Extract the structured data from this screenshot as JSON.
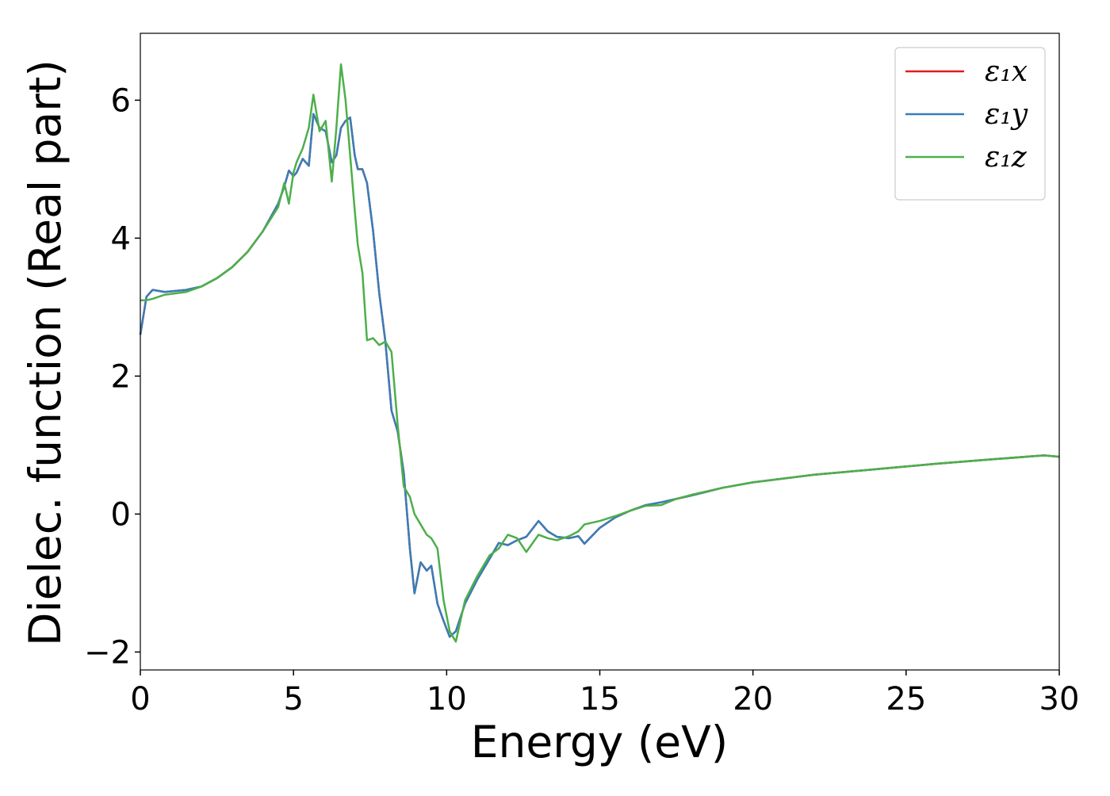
{
  "chart_data": {
    "type": "line",
    "xlabel": "Energy (eV)",
    "ylabel": "Dielec. function (Real part)",
    "x": [
      0,
      0.2,
      0.4,
      0.8,
      1.5,
      2,
      2.5,
      3,
      3.5,
      4,
      4.5,
      4.7,
      4.85,
      5.0,
      5.1,
      5.3,
      5.5,
      5.65,
      5.85,
      6.05,
      6.25,
      6.4,
      6.55,
      6.7,
      6.85,
      7.0,
      7.1,
      7.25,
      7.4,
      7.6,
      7.8,
      8.0,
      8.2,
      8.4,
      8.6,
      8.8,
      8.95,
      9.15,
      9.35,
      9.5,
      9.7,
      9.9,
      10.1,
      10.3,
      10.6,
      11.0,
      11.4,
      11.7,
      12.0,
      12.3,
      12.6,
      13.0,
      13.3,
      13.6,
      14.0,
      14.3,
      14.5,
      15,
      15.5,
      16,
      16.5,
      17,
      17.5,
      18,
      19,
      20,
      22,
      24,
      26,
      28,
      29.5,
      30
    ],
    "series": [
      {
        "name": "ε₁x",
        "color": "#e41a1c",
        "values": [
          2.6,
          3.15,
          3.25,
          3.22,
          3.25,
          3.3,
          3.42,
          3.58,
          3.8,
          4.1,
          4.5,
          4.75,
          4.98,
          4.9,
          4.95,
          5.15,
          5.05,
          5.8,
          5.6,
          5.55,
          5.1,
          5.2,
          5.6,
          5.7,
          5.75,
          5.2,
          5.0,
          5.0,
          4.8,
          4.1,
          3.2,
          2.5,
          1.5,
          1.2,
          0.6,
          -0.5,
          -1.15,
          -0.7,
          -0.82,
          -0.75,
          -1.3,
          -1.55,
          -1.78,
          -1.7,
          -1.3,
          -0.95,
          -0.65,
          -0.42,
          -0.45,
          -0.38,
          -0.33,
          -0.1,
          -0.25,
          -0.33,
          -0.35,
          -0.32,
          -0.43,
          -0.2,
          -0.05,
          0.05,
          0.13,
          0.17,
          0.22,
          0.27,
          0.38,
          0.46,
          0.57,
          0.65,
          0.73,
          0.8,
          0.85,
          0.83
        ]
      },
      {
        "name": "ε₁y",
        "color": "#377eb8",
        "values": [
          2.6,
          3.15,
          3.25,
          3.22,
          3.25,
          3.3,
          3.42,
          3.58,
          3.8,
          4.1,
          4.5,
          4.75,
          4.98,
          4.9,
          4.95,
          5.15,
          5.05,
          5.8,
          5.6,
          5.55,
          5.1,
          5.2,
          5.6,
          5.7,
          5.75,
          5.2,
          5.0,
          5.0,
          4.8,
          4.1,
          3.2,
          2.5,
          1.5,
          1.2,
          0.6,
          -0.5,
          -1.15,
          -0.7,
          -0.82,
          -0.75,
          -1.3,
          -1.55,
          -1.78,
          -1.7,
          -1.3,
          -0.95,
          -0.65,
          -0.42,
          -0.45,
          -0.38,
          -0.33,
          -0.1,
          -0.25,
          -0.33,
          -0.35,
          -0.32,
          -0.43,
          -0.2,
          -0.05,
          0.05,
          0.13,
          0.17,
          0.22,
          0.27,
          0.38,
          0.46,
          0.57,
          0.65,
          0.73,
          0.8,
          0.85,
          0.83
        ]
      },
      {
        "name": "ε₁z",
        "color": "#4daf4a",
        "values": [
          3.1,
          3.1,
          3.12,
          3.18,
          3.22,
          3.3,
          3.42,
          3.58,
          3.8,
          4.1,
          4.45,
          4.8,
          4.5,
          4.95,
          5.1,
          5.3,
          5.6,
          6.08,
          5.55,
          5.7,
          4.82,
          5.6,
          6.52,
          6.0,
          5.2,
          4.4,
          3.9,
          3.5,
          2.52,
          2.55,
          2.45,
          2.5,
          2.35,
          1.3,
          0.4,
          0.25,
          0.0,
          -0.15,
          -0.3,
          -0.35,
          -0.5,
          -1.25,
          -1.7,
          -1.85,
          -1.25,
          -0.9,
          -0.6,
          -0.5,
          -0.3,
          -0.35,
          -0.55,
          -0.3,
          -0.35,
          -0.38,
          -0.32,
          -0.25,
          -0.15,
          -0.1,
          -0.03,
          0.05,
          0.12,
          0.13,
          0.22,
          0.28,
          0.38,
          0.46,
          0.57,
          0.65,
          0.73,
          0.8,
          0.85,
          0.83
        ]
      }
    ],
    "xlim": [
      0,
      30
    ],
    "xticks": [
      0,
      5,
      10,
      15,
      20,
      25,
      30
    ],
    "ylim": [
      -2.26,
      6.97
    ],
    "yticks": [
      {
        "value": -2,
        "label": "−2"
      },
      0,
      2,
      4,
      6
    ],
    "grid": false,
    "legend": "upper right"
  }
}
